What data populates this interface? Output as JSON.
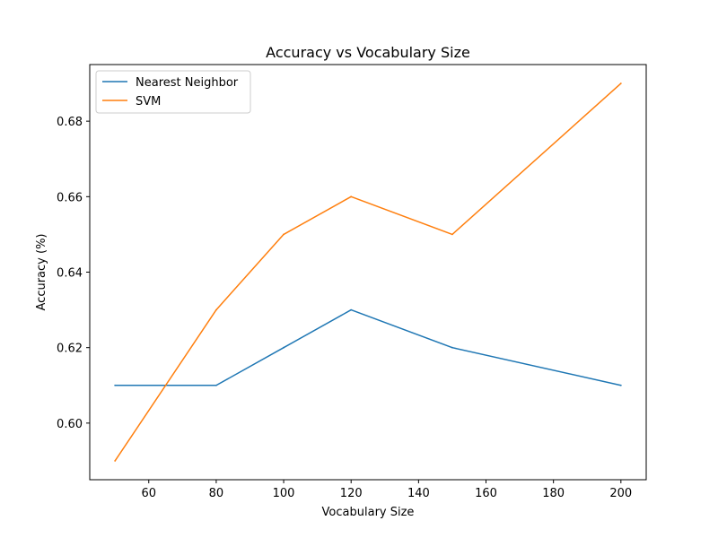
{
  "chart_data": {
    "type": "line",
    "title": "Accuracy vs Vocabulary Size",
    "xlabel": "Vocabulary Size",
    "ylabel": "Accuracy (%)",
    "x": [
      50,
      80,
      100,
      120,
      150,
      200
    ],
    "series": [
      {
        "name": "Nearest Neighbor",
        "color": "#1f77b4",
        "values": [
          0.61,
          0.61,
          0.62,
          0.63,
          0.62,
          0.61
        ]
      },
      {
        "name": "SVM",
        "color": "#ff7f0e",
        "values": [
          0.59,
          0.63,
          0.65,
          0.66,
          0.65,
          0.69
        ]
      }
    ],
    "xlim": [
      42.5,
      207.5
    ],
    "ylim": [
      0.585,
      0.695
    ],
    "xticks": [
      {
        "value": 60,
        "label": "60"
      },
      {
        "value": 80,
        "label": "80"
      },
      {
        "value": 100,
        "label": "100"
      },
      {
        "value": 120,
        "label": "120"
      },
      {
        "value": 140,
        "label": "140"
      },
      {
        "value": 160,
        "label": "160"
      },
      {
        "value": 180,
        "label": "180"
      },
      {
        "value": 200,
        "label": "200"
      }
    ],
    "yticks": [
      {
        "value": 0.6,
        "label": "0.60"
      },
      {
        "value": 0.62,
        "label": "0.62"
      },
      {
        "value": 0.64,
        "label": "0.64"
      },
      {
        "value": 0.66,
        "label": "0.66"
      },
      {
        "value": 0.68,
        "label": "0.68"
      }
    ],
    "grid": false,
    "legend": "top-left"
  }
}
